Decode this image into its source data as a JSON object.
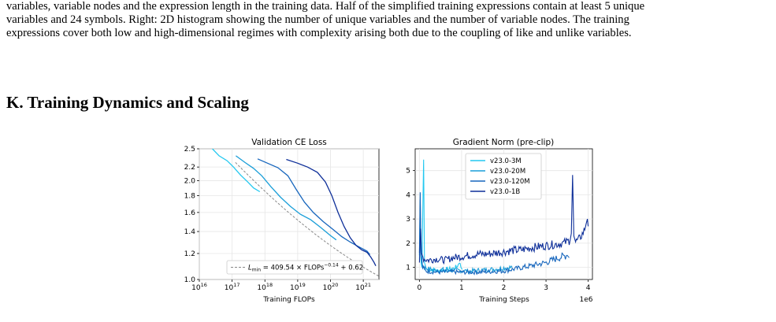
{
  "top_paragraph": {
    "lines": [
      "variables, variable nodes and the expression length in the training data. Half of the simplified training expressions contain at least 5 unique",
      "variables and 24 symbols. Right: 2D histogram showing the number of unique variables and the number of variable nodes. The training",
      "expressions cover both low and high-dimensional regimes with complexity arising both due to the coupling of like and unlike variables."
    ]
  },
  "section": {
    "title": "K. Training Dynamics and Scaling"
  },
  "colors": {
    "v23.0-3M": "#23c8f0",
    "v23.0-20M": "#1a9ed8",
    "v23.0-120M": "#1766bd",
    "v23.0-1B": "#0e2f99",
    "fit": "#888888"
  },
  "chart_data": [
    {
      "type": "line",
      "title": "Validation CE Loss",
      "xlabel": "Training FLOPs",
      "ylabel": "",
      "x_scale": "log",
      "y_scale": "log",
      "xlim": [
        1e+16,
        3e+21
      ],
      "ylim": [
        1.0,
        2.5
      ],
      "x_ticks": [
        {
          "value": 1e+16,
          "base": "10",
          "exp": "16"
        },
        {
          "value": 1e+17,
          "base": "10",
          "exp": "17"
        },
        {
          "value": 1e+18,
          "base": "10",
          "exp": "18"
        },
        {
          "value": 1e+19,
          "base": "10",
          "exp": "19"
        },
        {
          "value": 1e+20,
          "base": "10",
          "exp": "20"
        },
        {
          "value": 1e+21,
          "base": "10",
          "exp": "21"
        }
      ],
      "y_ticks": [
        {
          "value": 1.0,
          "label": "1.0"
        },
        {
          "value": 1.2,
          "label": "1.2"
        },
        {
          "value": 1.4,
          "label": "1.4"
        },
        {
          "value": 1.6,
          "label": "1.6"
        },
        {
          "value": 1.8,
          "label": "1.8"
        },
        {
          "value": 2.0,
          "label": "2.0"
        },
        {
          "value": 2.2,
          "label": "2.2"
        },
        {
          "value": 2.5,
          "label": "2.5"
        }
      ],
      "legend": {
        "position": "lower-left",
        "entries": [
          {
            "prefix": "L",
            "sub": "min",
            "mid": " = 409.54 × FLOPs",
            "sup": "−0.14",
            "suffix": " + 0.62"
          }
        ]
      },
      "fit": {
        "a": 409.54,
        "b": -0.14,
        "c": 0.62,
        "x_range": [
          1.26e+17,
          3e+21
        ]
      },
      "series": [
        {
          "key": "v23.0-3M",
          "points": [
            [
              2.5e+16,
              2.5
            ],
            [
              4e+16,
              2.38
            ],
            [
              7e+16,
              2.3
            ],
            [
              1.1e+17,
              2.2
            ],
            [
              1.8e+17,
              2.08
            ],
            [
              3e+17,
              1.98
            ],
            [
              4.5e+17,
              1.9
            ],
            [
              7e+17,
              1.85
            ]
          ]
        },
        {
          "key": "v23.0-20M",
          "points": [
            [
              1.3e+17,
              2.38
            ],
            [
              2.5e+17,
              2.27
            ],
            [
              4.5e+17,
              2.18
            ],
            [
              8e+17,
              2.07
            ],
            [
              1.5e+18,
              1.92
            ],
            [
              3e+18,
              1.78
            ],
            [
              6e+18,
              1.67
            ],
            [
              1.2e+19,
              1.58
            ],
            [
              2.5e+19,
              1.52
            ],
            [
              5e+19,
              1.44
            ],
            [
              1e+20,
              1.36
            ],
            [
              1.5e+20,
              1.32
            ]
          ]
        },
        {
          "key": "v23.0-120M",
          "points": [
            [
              6e+17,
              2.33
            ],
            [
              1.2e+18,
              2.26
            ],
            [
              2.5e+18,
              2.19
            ],
            [
              5e+18,
              2.07
            ],
            [
              9e+18,
              1.88
            ],
            [
              1.6e+19,
              1.72
            ],
            [
              3e+19,
              1.6
            ],
            [
              6e+19,
              1.5
            ],
            [
              1.2e+20,
              1.42
            ],
            [
              2.2e+20,
              1.35
            ],
            [
              4e+20,
              1.3
            ],
            [
              7e+20,
              1.26
            ],
            [
              1.3e+21,
              1.22
            ],
            [
              1.6e+21,
              1.19
            ]
          ]
        },
        {
          "key": "v23.0-1B",
          "points": [
            [
              4.5e+18,
              2.32
            ],
            [
              1e+19,
              2.26
            ],
            [
              2e+19,
              2.2
            ],
            [
              4e+19,
              2.12
            ],
            [
              7e+19,
              1.98
            ],
            [
              1.1e+20,
              1.8
            ],
            [
              1.7e+20,
              1.6
            ],
            [
              2.6e+20,
              1.45
            ],
            [
              4e+20,
              1.34
            ],
            [
              6e+20,
              1.27
            ],
            [
              9e+20,
              1.23
            ],
            [
              1.3e+21,
              1.21
            ],
            [
              1.7e+21,
              1.17
            ],
            [
              2.1e+21,
              1.13
            ],
            [
              2.4e+21,
              1.1
            ]
          ]
        }
      ]
    },
    {
      "type": "line",
      "title": "Gradient Norm (pre-clip)",
      "xlabel": "Training Steps",
      "x_offset_label": "1e6",
      "ylabel": "",
      "xlim": [
        -0.1,
        4.1
      ],
      "ylim": [
        0.5,
        5.9
      ],
      "x_ticks": [
        {
          "value": 0,
          "label": "0"
        },
        {
          "value": 1,
          "label": "1"
        },
        {
          "value": 2,
          "label": "2"
        },
        {
          "value": 3,
          "label": "3"
        },
        {
          "value": 4,
          "label": "4"
        }
      ],
      "y_ticks": [
        {
          "value": 1,
          "label": "1"
        },
        {
          "value": 2,
          "label": "2"
        },
        {
          "value": 3,
          "label": "3"
        },
        {
          "value": 4,
          "label": "4"
        },
        {
          "value": 5,
          "label": "5"
        }
      ],
      "legend": {
        "position": "top-center",
        "entries": [
          "v23.0-3M",
          "v23.0-20M",
          "v23.0-120M",
          "v23.0-1B"
        ]
      },
      "series": [
        {
          "key": "v23.0-3M",
          "points": [
            [
              0,
              1.3
            ],
            [
              0.02,
              3.4
            ],
            [
              0.04,
              1.2
            ],
            [
              0.06,
              1.0
            ],
            [
              0.1,
              5.45
            ],
            [
              0.12,
              1.2
            ],
            [
              0.16,
              0.95
            ],
            [
              0.2,
              0.9
            ],
            [
              0.3,
              0.92
            ],
            [
              0.4,
              0.85
            ],
            [
              0.5,
              0.88
            ],
            [
              0.6,
              0.9
            ],
            [
              0.7,
              0.92
            ],
            [
              0.8,
              0.95
            ],
            [
              0.9,
              1.02
            ],
            [
              0.95,
              1.25
            ],
            [
              1.0,
              0.95
            ],
            [
              1.02,
              0.92
            ]
          ]
        },
        {
          "key": "v23.0-20M",
          "points": [
            [
              0,
              1.5
            ],
            [
              0.02,
              3.8
            ],
            [
              0.04,
              1.4
            ],
            [
              0.07,
              1.1
            ],
            [
              0.12,
              1.0
            ],
            [
              0.2,
              0.95
            ],
            [
              0.3,
              0.9
            ],
            [
              0.4,
              0.88
            ],
            [
              0.5,
              0.9
            ],
            [
              0.6,
              0.9
            ],
            [
              0.8,
              0.88
            ],
            [
              1.0,
              0.87
            ],
            [
              1.2,
              0.85
            ],
            [
              1.4,
              0.88
            ],
            [
              1.6,
              0.9
            ],
            [
              1.8,
              0.93
            ],
            [
              2.0,
              0.98
            ],
            [
              2.2,
              1.0
            ]
          ]
        },
        {
          "key": "v23.0-120M",
          "points": [
            [
              0,
              1.6
            ],
            [
              0.02,
              4.1
            ],
            [
              0.04,
              1.5
            ],
            [
              0.08,
              1.0
            ],
            [
              0.15,
              0.85
            ],
            [
              0.3,
              0.82
            ],
            [
              0.5,
              0.8
            ],
            [
              0.8,
              0.82
            ],
            [
              1.0,
              0.8
            ],
            [
              1.3,
              0.8
            ],
            [
              1.6,
              0.82
            ],
            [
              2.0,
              0.85
            ],
            [
              2.3,
              0.95
            ],
            [
              2.6,
              1.05
            ],
            [
              3.0,
              1.2
            ],
            [
              3.3,
              1.4
            ],
            [
              3.5,
              1.5
            ],
            [
              3.55,
              1.4
            ]
          ]
        },
        {
          "key": "v23.0-1B",
          "points": [
            [
              0,
              1.2
            ],
            [
              0.03,
              2.6
            ],
            [
              0.05,
              1.6
            ],
            [
              0.1,
              1.35
            ],
            [
              0.2,
              1.3
            ],
            [
              0.4,
              1.35
            ],
            [
              0.6,
              1.3
            ],
            [
              0.8,
              1.4
            ],
            [
              1.0,
              1.45
            ],
            [
              1.2,
              1.5
            ],
            [
              1.4,
              1.55
            ],
            [
              1.6,
              1.55
            ],
            [
              1.8,
              1.6
            ],
            [
              2.0,
              1.65
            ],
            [
              2.2,
              1.7
            ],
            [
              2.4,
              1.72
            ],
            [
              2.6,
              1.8
            ],
            [
              2.8,
              1.85
            ],
            [
              3.0,
              1.9
            ],
            [
              3.2,
              1.95
            ],
            [
              3.4,
              2.0
            ],
            [
              3.55,
              2.1
            ],
            [
              3.6,
              2.4
            ],
            [
              3.63,
              4.82
            ],
            [
              3.66,
              2.3
            ],
            [
              3.7,
              2.05
            ],
            [
              3.8,
              2.2
            ],
            [
              3.9,
              2.5
            ],
            [
              3.95,
              2.8
            ],
            [
              3.98,
              3.0
            ],
            [
              4.0,
              2.7
            ]
          ]
        }
      ]
    }
  ],
  "bottom_paragraph": {
    "lines": [
      ""
    ]
  }
}
